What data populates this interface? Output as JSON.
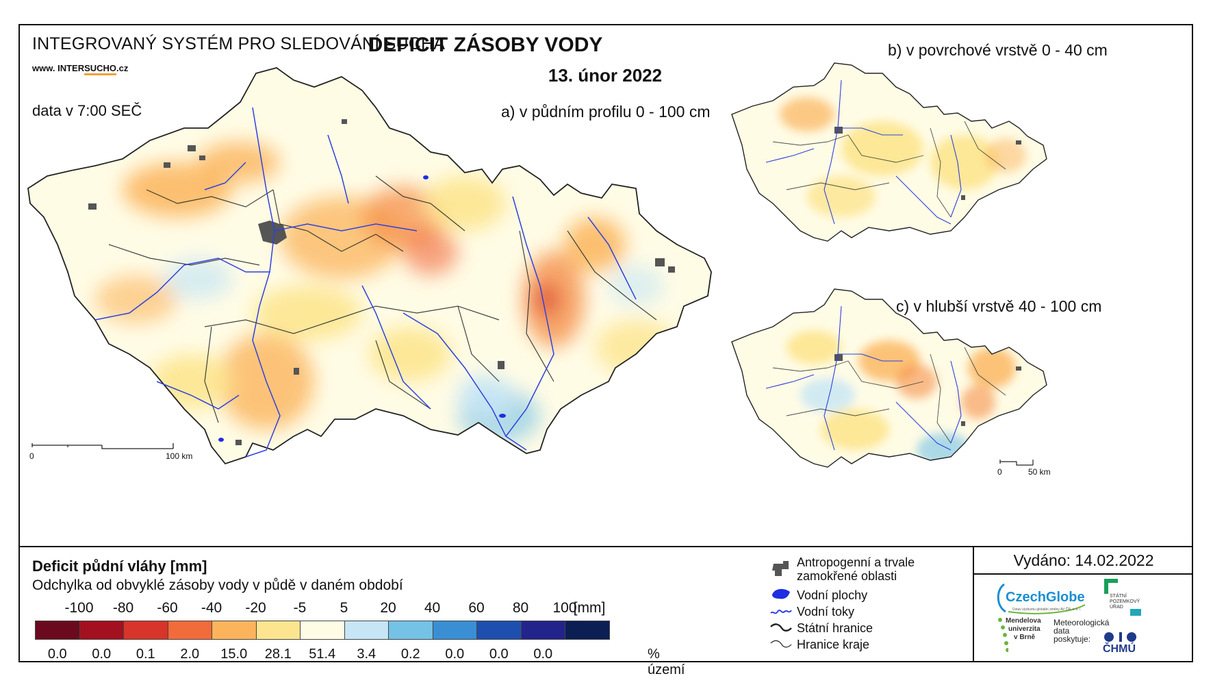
{
  "header": {
    "system_title": "INTEGROVANÝ SYSTÉM PRO SLEDOVÁNÍ SUCHA",
    "www_prefix": "www. INTER",
    "www_highlight": "SUCHO",
    "www_suffix": ".cz",
    "data_time": "data v 7:00 SEČ",
    "main_title": "DEFICIT ZÁSOBY VODY",
    "date": "13. únor 2022"
  },
  "panels": {
    "a": "a) v půdním profilu 0 - 100 cm",
    "b": "b) v povrchové vrstvě 0 - 40 cm",
    "c": "c) v hlubší vrstvě 40 - 100 cm"
  },
  "scale_bars": {
    "main": {
      "start": "0",
      "end": "100 km"
    },
    "small": {
      "start": "0",
      "end": "50 km"
    }
  },
  "legend": {
    "title": "Deficit půdní vláhy  [mm]",
    "subtitle": "Odchylka od obvyklé zásoby vody v půdě v daném období",
    "ticks": [
      "-100",
      "-80",
      "-60",
      "-40",
      "-20",
      "-5",
      "5",
      "20",
      "40",
      "60",
      "80",
      "100"
    ],
    "unit": "[mm]",
    "classes": [
      {
        "color": "#6b0a1e",
        "percent": "0.0"
      },
      {
        "color": "#a3101f",
        "percent": "0.0"
      },
      {
        "color": "#d7342a",
        "percent": "0.1"
      },
      {
        "color": "#f26b3a",
        "percent": "2.0"
      },
      {
        "color": "#fbb45c",
        "percent": "15.0"
      },
      {
        "color": "#fde58f",
        "percent": "28.1"
      },
      {
        "color": "#fffce6",
        "percent": "51.4"
      },
      {
        "color": "#c6e6f5",
        "percent": "3.4"
      },
      {
        "color": "#74c2e6",
        "percent": "0.2"
      },
      {
        "color": "#3a8fd4",
        "percent": "0.0"
      },
      {
        "color": "#1f4fae",
        "percent": "0.0"
      },
      {
        "color": "#23238c",
        "percent": "0.0"
      },
      {
        "color": "#0b1f54",
        "percent": ""
      }
    ],
    "percent_unit": "% území"
  },
  "symbols": {
    "urban": "Antropogenní a trvale zamokřené oblasti",
    "water_bodies": "Vodní plochy",
    "rivers": "Vodní toky",
    "state_border": "Státní hranice",
    "region_border": "Hranice kraje"
  },
  "issued": "Vydáno: 14.02.2022",
  "logos": {
    "czechglobe": "CzechGlobe",
    "czechglobe_sub": "Ústav výzkumu globální změny AV ČR, v. v. i.",
    "spu_line1": "STÁTNÍ",
    "spu_line2": "POZEMKOVÝ",
    "spu_line3": "ÚŘAD",
    "mendel_line1": "Mendelova",
    "mendel_line2": "univerzita",
    "mendel_line3": "v Brně",
    "meteo_line1": "Meteorologická",
    "meteo_line2": "data",
    "meteo_line3": "poskytuje:",
    "chmu": "ČHMÚ"
  },
  "colors": {
    "river": "#2f3fe0",
    "urban": "#555555",
    "border": "#222222",
    "background_fill": "#fffce6"
  }
}
